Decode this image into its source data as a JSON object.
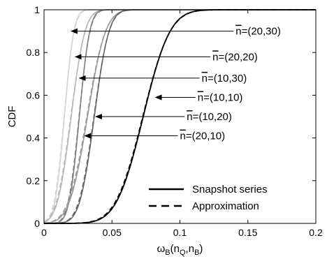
{
  "chart_data": {
    "type": "line",
    "title": "",
    "xlabel": "ω_B(n_Q,n_B)",
    "ylabel": "CDF",
    "xlim": [
      0,
      0.2
    ],
    "ylim": [
      0,
      1
    ],
    "x_ticks": [
      "0",
      "0.05",
      "0.1",
      "0.15",
      "0.2"
    ],
    "y_ticks": [
      "0",
      "0.2",
      "0.4",
      "0.6",
      "0.8",
      "1"
    ],
    "grid": false,
    "legend": {
      "placement": "bottom-right",
      "entries": [
        {
          "label": "Snapshot series",
          "style": "solid"
        },
        {
          "label": "Approximation",
          "style": "dashed"
        }
      ]
    },
    "series": [
      {
        "color": "#000000",
        "mu": 0.073,
        "sigma": 0.0155,
        "approx_mu": 0.0727,
        "approx_sigma": 0.0158
      },
      {
        "color": "#666666",
        "mu": 0.037,
        "sigma": 0.0085,
        "approx_mu": 0.0367,
        "approx_sigma": 0.0088
      },
      {
        "color": "#9a9a9a",
        "mu": 0.032,
        "sigma": 0.0105,
        "approx_mu": 0.0315,
        "approx_sigma": 0.0108
      },
      {
        "color": "#808080",
        "mu": 0.026,
        "sigma": 0.006,
        "approx_mu": 0.0258,
        "approx_sigma": 0.0063
      },
      {
        "color": "#b8b8b8",
        "mu": 0.02,
        "sigma": 0.008,
        "approx_mu": 0.0197,
        "approx_sigma": 0.0083
      },
      {
        "color": "#d4d4d4",
        "mu": 0.015,
        "sigma": 0.0055,
        "approx_mu": 0.0148,
        "approx_sigma": 0.0058
      }
    ],
    "annotations": [
      {
        "text": "(20,30)",
        "label_x": 0.141,
        "label_y": 0.9,
        "arrow_x": 0.02,
        "arrow_y": 0.9
      },
      {
        "text": "(20,20)",
        "label_x": 0.124,
        "label_y": 0.78,
        "arrow_x": 0.023,
        "arrow_y": 0.78
      },
      {
        "text": "(10,30)",
        "label_x": 0.116,
        "label_y": 0.68,
        "arrow_x": 0.026,
        "arrow_y": 0.68
      },
      {
        "text": "(10,10)",
        "label_x": 0.113,
        "label_y": 0.59,
        "arrow_x": 0.082,
        "arrow_y": 0.59
      },
      {
        "text": "(10,20)",
        "label_x": 0.105,
        "label_y": 0.5,
        "arrow_x": 0.038,
        "arrow_y": 0.5
      },
      {
        "text": "(20,10)",
        "label_x": 0.1,
        "label_y": 0.41,
        "arrow_x": 0.03,
        "arrow_y": 0.41
      }
    ]
  }
}
